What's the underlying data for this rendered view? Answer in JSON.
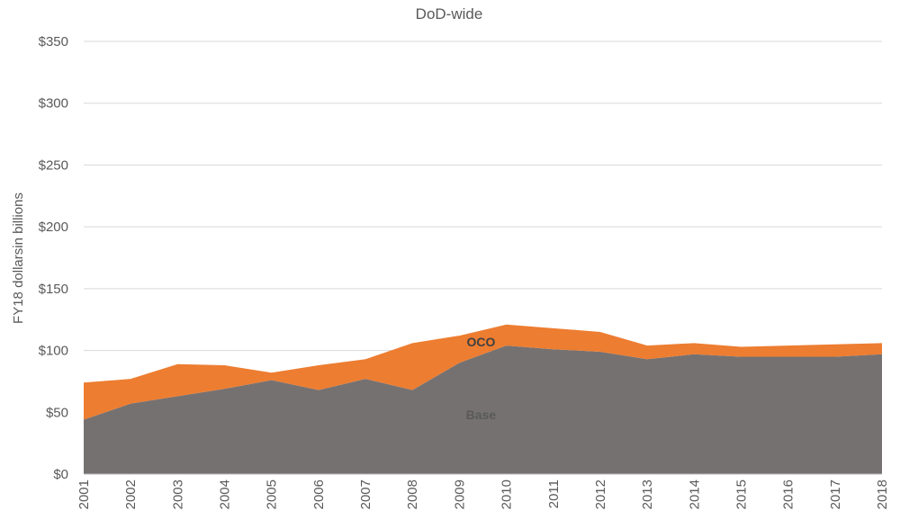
{
  "chart_data": {
    "type": "area",
    "stacked": true,
    "title": "DoD-wide",
    "ylabel": "FY18 dollarsin billions",
    "xlabel": "",
    "ylim": [
      0,
      350
    ],
    "ytick_values": [
      0,
      50,
      100,
      150,
      200,
      250,
      300,
      350
    ],
    "ytick_labels": [
      "$0",
      "$50",
      "$100",
      "$150",
      "$200",
      "$250",
      "$300",
      "$350"
    ],
    "x": [
      "2001",
      "2002",
      "2003",
      "2004",
      "2005",
      "2006",
      "2007",
      "2008",
      "2009",
      "2010",
      "2011",
      "2012",
      "2013",
      "2014",
      "2015",
      "2016",
      "2017",
      "2018"
    ],
    "grid": true,
    "legend": "none",
    "series": [
      {
        "name": "Base",
        "color": "#767171",
        "label_color": "#595959",
        "label_at": "2009",
        "label_value": 48,
        "values": [
          44,
          57,
          63,
          69,
          76,
          68,
          77,
          68,
          90,
          104,
          101,
          99,
          93,
          97,
          95,
          95,
          95,
          97
        ]
      },
      {
        "name": "OCO",
        "color": "#ED7D31",
        "label_color": "#404040",
        "label_at": "2009",
        "label_value": 107,
        "values": [
          30,
          20,
          26,
          19,
          6,
          20,
          16,
          38,
          22,
          17,
          17,
          16,
          11,
          9,
          8,
          9,
          10,
          9
        ]
      }
    ]
  }
}
